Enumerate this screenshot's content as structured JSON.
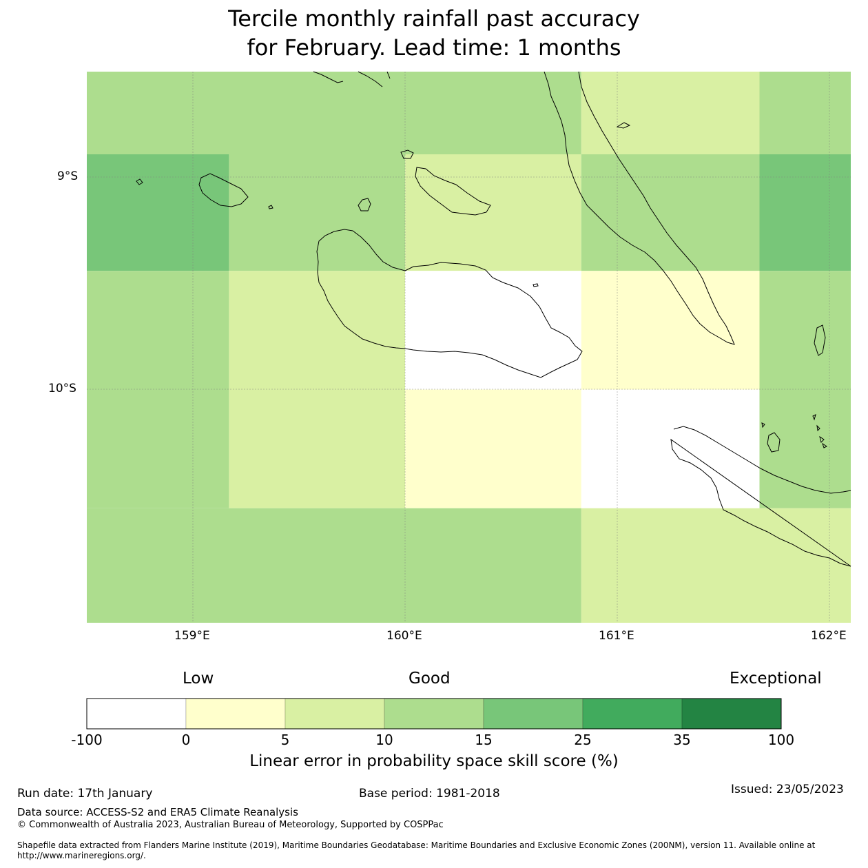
{
  "title": {
    "line1": "Tercile monthly rainfall past accuracy",
    "line2": "for February. Lead time: 1 months"
  },
  "map": {
    "lat_ticks": [
      "9°S",
      "10°S"
    ],
    "lon_ticks": [
      "159°E",
      "160°E",
      "161°E",
      "162°E"
    ],
    "extent": {
      "lon_min": 158.5,
      "lon_max": 162.1,
      "lat_min": -11.1,
      "lat_max": -8.5
    },
    "grid_cells": [
      {
        "lon": [
          158.5,
          160.83
        ],
        "lat": [
          -8.5,
          -8.89
        ],
        "class": 3
      },
      {
        "lon": [
          160.83,
          161.67
        ],
        "lat": [
          -8.5,
          -8.89
        ],
        "class": 2
      },
      {
        "lon": [
          161.67,
          162.1
        ],
        "lat": [
          -8.5,
          -8.89
        ],
        "class": 3
      },
      {
        "lon": [
          158.5,
          159.17
        ],
        "lat": [
          -8.89,
          -9.44
        ],
        "class": 4
      },
      {
        "lon": [
          159.17,
          160.0
        ],
        "lat": [
          -8.89,
          -9.44
        ],
        "class": 3
      },
      {
        "lon": [
          160.0,
          160.83
        ],
        "lat": [
          -8.89,
          -9.44
        ],
        "class": 2
      },
      {
        "lon": [
          160.83,
          161.67
        ],
        "lat": [
          -8.89,
          -9.44
        ],
        "class": 3
      },
      {
        "lon": [
          161.67,
          162.1
        ],
        "lat": [
          -8.89,
          -9.44
        ],
        "class": 4
      },
      {
        "lon": [
          158.5,
          159.17
        ],
        "lat": [
          -9.44,
          -10.0
        ],
        "class": 3
      },
      {
        "lon": [
          159.17,
          160.0
        ],
        "lat": [
          -9.44,
          -10.0
        ],
        "class": 2
      },
      {
        "lon": [
          160.0,
          160.83
        ],
        "lat": [
          -9.44,
          -10.0
        ],
        "class": 0
      },
      {
        "lon": [
          160.83,
          161.67
        ],
        "lat": [
          -9.44,
          -10.0
        ],
        "class": 1
      },
      {
        "lon": [
          161.67,
          162.1
        ],
        "lat": [
          -9.44,
          -10.0
        ],
        "class": 3
      },
      {
        "lon": [
          158.5,
          159.17
        ],
        "lat": [
          -10.0,
          -10.56
        ],
        "class": 3
      },
      {
        "lon": [
          159.17,
          160.0
        ],
        "lat": [
          -10.0,
          -10.56
        ],
        "class": 2
      },
      {
        "lon": [
          160.0,
          160.83
        ],
        "lat": [
          -10.0,
          -10.56
        ],
        "class": 1
      },
      {
        "lon": [
          160.83,
          161.67
        ],
        "lat": [
          -10.0,
          -10.56
        ],
        "class": 0
      },
      {
        "lon": [
          161.67,
          162.1
        ],
        "lat": [
          -10.0,
          -10.56
        ],
        "class": 3
      },
      {
        "lon": [
          158.5,
          160.83
        ],
        "lat": [
          -10.56,
          -11.1
        ],
        "class": 3
      },
      {
        "lon": [
          160.83,
          162.1
        ],
        "lat": [
          -10.56,
          -11.1
        ],
        "class": 2
      }
    ]
  },
  "colorbar": {
    "low_label": "Low",
    "good_label": "Good",
    "exceptional_label": "Exceptional",
    "ticks": [
      "-100",
      "0",
      "5",
      "10",
      "15",
      "25",
      "35",
      "100"
    ],
    "colors": [
      "#ffffff",
      "#ffffcc",
      "#d9f0a3",
      "#addd8e",
      "#78c679",
      "#41ab5d",
      "#238443"
    ],
    "label": "Linear error in probability space skill score (%)"
  },
  "footer": {
    "run_date": "Run date: 17th January",
    "base_period": "Base period: 1981-2018",
    "issued": "Issued: 23/05/2023",
    "data_source": "Data source: ACCESS-S2 and ERA5 Climate Reanalysis",
    "copyright": "© Commonwealth of Australia 2023, Australian Bureau of Meteorology, Supported by COSPPac",
    "shapefile": "Shapefile data extracted from Flanders Marine Institute (2019), Maritime Boundaries Geodatabase: Maritime Boundaries and Exclusive Economic Zones (200NM), version 11. Available online at http://www.marineregions.org/."
  }
}
